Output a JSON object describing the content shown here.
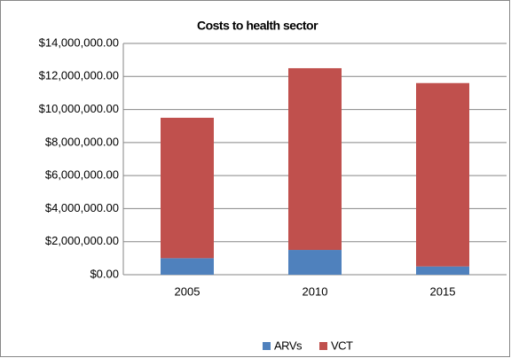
{
  "chart_data": {
    "type": "stacked-bar",
    "title": "Costs to health sector",
    "categories": [
      "2005",
      "2010",
      "2015"
    ],
    "series": [
      {
        "name": "ARVs",
        "color": "#4f81bd",
        "values": [
          1000000,
          1500000,
          500000
        ]
      },
      {
        "name": "VCT",
        "color": "#c0504d",
        "values": [
          8500000,
          11000000,
          11100000
        ]
      }
    ],
    "ylim": [
      0,
      14000000
    ],
    "yticks": [
      {
        "value": 0,
        "label": "$0.00"
      },
      {
        "value": 2000000,
        "label": "$2,000,000.00"
      },
      {
        "value": 4000000,
        "label": "$4,000,000.00"
      },
      {
        "value": 6000000,
        "label": "$6,000,000.00"
      },
      {
        "value": 8000000,
        "label": "$8,000,000.00"
      },
      {
        "value": 10000000,
        "label": "$10,000,000.00"
      },
      {
        "value": 12000000,
        "label": "$12,000,000.00"
      },
      {
        "value": 14000000,
        "label": "$14,000,000.00"
      }
    ],
    "grid": true,
    "legend": "bottom"
  }
}
